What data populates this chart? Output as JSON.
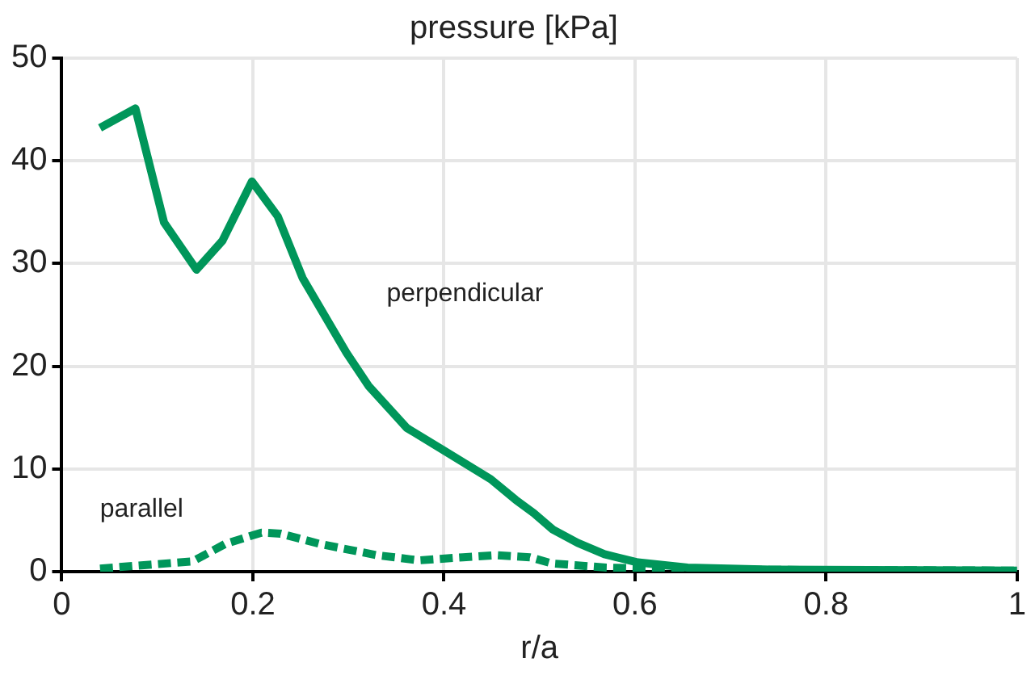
{
  "chart_data": {
    "type": "line",
    "title": "pressure [kPa]",
    "xlabel": "r/a",
    "xlim": [
      0,
      1
    ],
    "xticks": [
      0,
      0.2,
      0.4,
      0.6,
      0.8,
      1
    ],
    "ylim": [
      0,
      50
    ],
    "yticks": [
      0,
      10,
      20,
      30,
      40,
      50
    ],
    "grid": true,
    "legend": false,
    "marker": "none",
    "series": [
      {
        "name": "perpendicular",
        "color": "#00965a",
        "line_style": "solid",
        "x": [
          0.04,
          0.077,
          0.107,
          0.141,
          0.168,
          0.199,
          0.226,
          0.252,
          0.298,
          0.321,
          0.361,
          0.4,
          0.449,
          0.475,
          0.494,
          0.514,
          0.54,
          0.568,
          0.603,
          0.655,
          0.742,
          1.0
        ],
        "values": [
          43.2,
          45.1,
          34.0,
          29.4,
          32.2,
          38.0,
          34.6,
          28.6,
          21.3,
          18.1,
          14.0,
          11.8,
          9.0,
          7.0,
          5.7,
          4.1,
          2.8,
          1.7,
          0.9,
          0.4,
          0.2,
          0.1
        ]
      },
      {
        "name": "parallel",
        "color": "#00965a",
        "line_style": "dashed",
        "x": [
          0.04,
          0.137,
          0.171,
          0.209,
          0.229,
          0.27,
          0.33,
          0.374,
          0.42,
          0.455,
          0.49,
          0.513,
          0.57,
          0.655,
          1.0
        ],
        "values": [
          0.3,
          1.0,
          2.7,
          3.8,
          3.7,
          2.7,
          1.6,
          1.1,
          1.4,
          1.6,
          1.4,
          0.8,
          0.4,
          0.2,
          0.1
        ]
      }
    ]
  }
}
